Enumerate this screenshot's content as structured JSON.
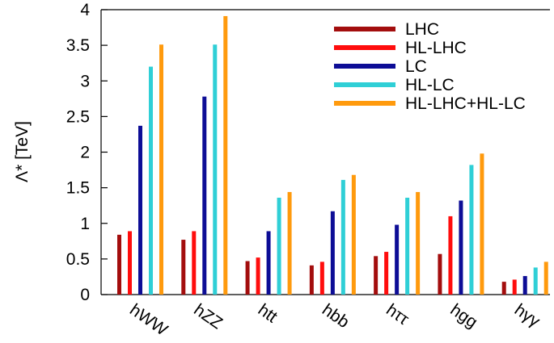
{
  "chart_data": {
    "type": "bar",
    "title": "",
    "xlabel": "",
    "ylabel": "Λ* [TeV]",
    "ylim": [
      0,
      4
    ],
    "yticks": [
      "0",
      "0.5",
      "1",
      "1.5",
      "2",
      "2.5",
      "3",
      "3.5",
      "4"
    ],
    "grid": false,
    "legend_position": "top-right",
    "categories": [
      "hWW",
      "hZZ",
      "htt",
      "hbb",
      "hττ",
      "hgg",
      "hγγ"
    ],
    "series": [
      {
        "name": "LHC",
        "color": "#a30d0d",
        "values": [
          0.84,
          0.77,
          0.47,
          0.41,
          0.54,
          0.57,
          0.18
        ]
      },
      {
        "name": "HL-LHC",
        "color": "#ff0d0d",
        "values": [
          0.89,
          0.89,
          0.52,
          0.46,
          0.6,
          1.1,
          0.21
        ]
      },
      {
        "name": "LC",
        "color": "#0d0d96",
        "values": [
          2.37,
          2.78,
          0.89,
          1.17,
          0.98,
          1.32,
          0.26
        ]
      },
      {
        "name": "HL-LC",
        "color": "#2fcfd6",
        "values": [
          3.2,
          3.51,
          1.36,
          1.61,
          1.36,
          1.82,
          0.38
        ]
      },
      {
        "name": "HL-LHC+HL-LC",
        "color": "#ff9a0d",
        "values": [
          3.51,
          3.91,
          1.44,
          1.68,
          1.44,
          1.98,
          0.46
        ]
      }
    ]
  }
}
